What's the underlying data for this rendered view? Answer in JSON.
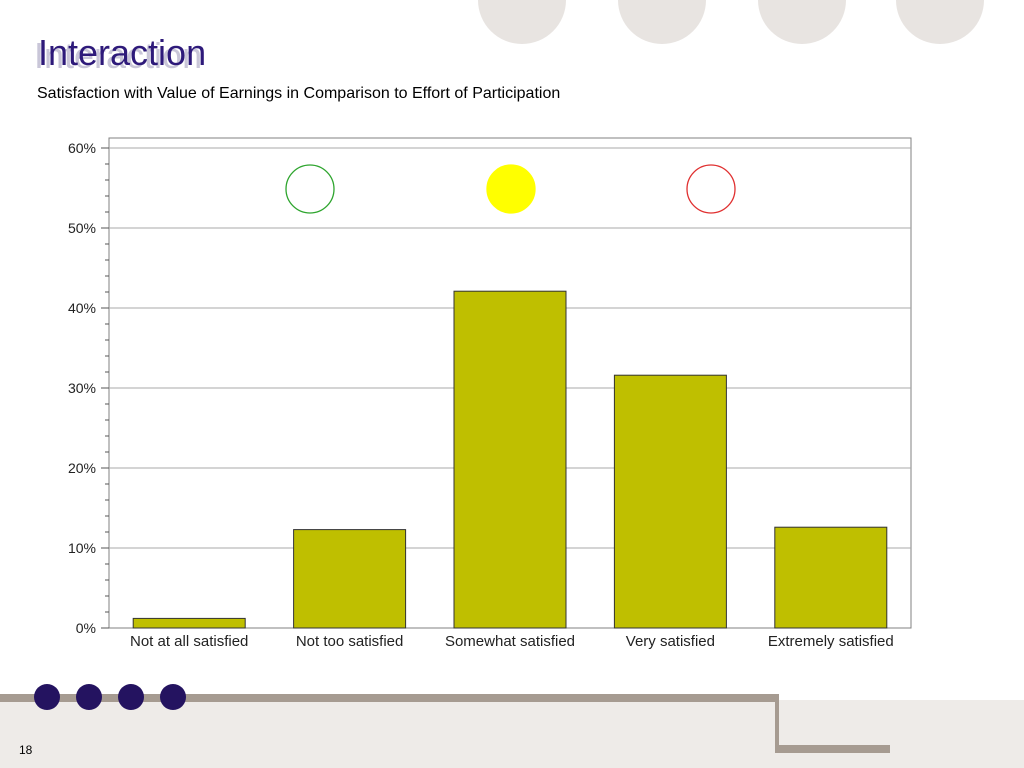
{
  "slide": {
    "title": "Interaction",
    "subtitle": "Satisfaction with Value of Earnings in Comparison to Effort of Participation",
    "page_number": "18"
  },
  "colors": {
    "title": "#2e1a7a",
    "bar_fill": "#bfbf00",
    "accent_dots": "#241360",
    "decor": "#e8e4e1",
    "footer_line": "#a69b91"
  },
  "legend_indicators": [
    {
      "name": "green-circle-icon",
      "color": "#2ea52e",
      "filled": false
    },
    {
      "name": "yellow-circle-icon",
      "color": "#ffff00",
      "filled": true
    },
    {
      "name": "red-circle-icon",
      "color": "#e03030",
      "filled": false
    }
  ],
  "chart_data": {
    "type": "bar",
    "categories": [
      "Not at all satisfied",
      "Not too satisfied",
      "Somewhat satisfied",
      "Very satisfied",
      "Extremely satisfied"
    ],
    "values": [
      1.2,
      12.3,
      42.1,
      31.6,
      12.6
    ],
    "ylim": [
      0,
      60
    ],
    "yticks": [
      0,
      10,
      20,
      30,
      40,
      50,
      60
    ],
    "ytick_labels": [
      "0%",
      "10%",
      "20%",
      "30%",
      "40%",
      "50%",
      "60%"
    ],
    "grid": true,
    "xlabel": "",
    "ylabel": ""
  }
}
